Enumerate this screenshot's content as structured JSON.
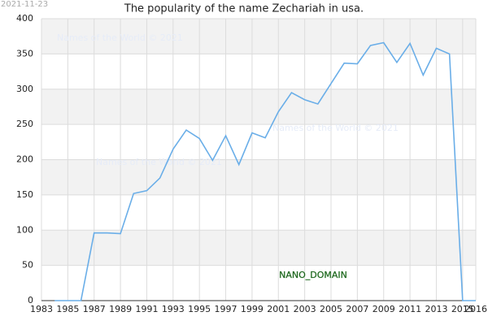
{
  "chart_data": {
    "type": "line",
    "title": "The popularity of the name Zechariah in usa.",
    "date_stamp": "2021-11-23",
    "badge": "NANO_DOMAIN",
    "watermarks": [
      "Names of the World © 2021",
      "Names of the World © 2021",
      "Names of the World © 2021"
    ],
    "x": [
      1984,
      1985,
      1986,
      1987,
      1988,
      1989,
      1990,
      1991,
      1992,
      1993,
      1994,
      1995,
      1996,
      1997,
      1998,
      1999,
      2000,
      2001,
      2002,
      2003,
      2004,
      2005,
      2006,
      2007,
      2008,
      2009,
      2010,
      2011,
      2012,
      2013,
      2014,
      2015,
      2016
    ],
    "series": [
      {
        "color": "#6aaee8",
        "values": [
          0,
          0,
          0,
          96,
          96,
          95,
          152,
          156,
          174,
          215,
          242,
          230,
          199,
          234,
          193,
          238,
          231,
          268,
          295,
          285,
          279,
          308,
          337,
          336,
          362,
          366,
          338,
          365,
          320,
          358,
          350,
          0,
          0
        ]
      }
    ],
    "xlim": [
      1983,
      2016
    ],
    "xticks": [
      1983,
      1985,
      1987,
      1989,
      1991,
      1993,
      1995,
      1997,
      1999,
      2001,
      2003,
      2005,
      2007,
      2009,
      2011,
      2013,
      2015,
      2016
    ],
    "ylim": [
      0,
      400
    ],
    "yticks": [
      0,
      50,
      100,
      150,
      200,
      250,
      300,
      350,
      400
    ],
    "grid": true
  }
}
